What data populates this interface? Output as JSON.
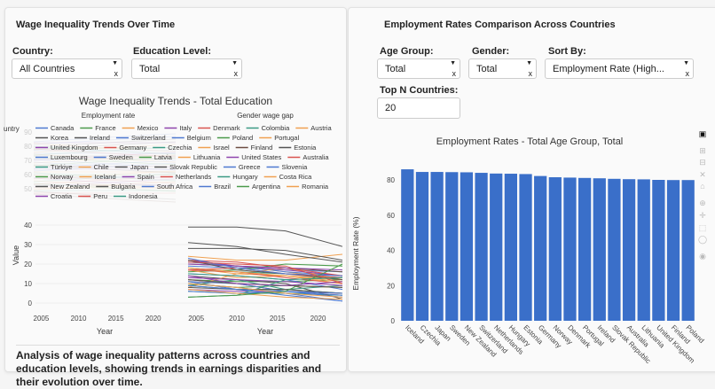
{
  "left": {
    "title": "Wage Inequality Trends Over Time",
    "country_label": "Country:",
    "country_value": "All Countries",
    "education_label": "Education Level:",
    "education_value": "Total",
    "analysis": "Analysis of wage inequality patterns across countries and education levels, showing trends in earnings disparities and their evolution over time."
  },
  "right": {
    "title": "Employment Rates Comparison Across Countries",
    "age_label": "Age Group:",
    "age_value": "Total",
    "gender_label": "Gender:",
    "gender_value": "Total",
    "sort_label": "Sort By:",
    "sort_value": "Employment Rate (High...",
    "topn_label": "Top N Countries:",
    "topn_value": "20"
  },
  "chart_data": [
    {
      "type": "line",
      "title": "Wage Inequality Trends - Total Education",
      "subplot_titles": [
        "Employment rate",
        "Gender wage gap"
      ],
      "ylabel": "Value",
      "xlabel": "Year",
      "legend_title_partial": "untry",
      "x_ticks": [
        "2005",
        "2010",
        "2015",
        "2020"
      ],
      "y_ticks_top": [
        "50",
        "60",
        "70",
        "80",
        "90"
      ],
      "y_ticks": [
        "0",
        "10",
        "20",
        "30",
        "40"
      ],
      "sample_years": [
        2004,
        2010,
        2016,
        2023
      ],
      "series": [
        {
          "name": "Canada",
          "color": "#4e79d0",
          "gap": [
            19,
            18,
            17,
            16
          ]
        },
        {
          "name": "France",
          "color": "#4a9a4a",
          "gap": [
            12,
            11,
            11,
            12
          ]
        },
        {
          "name": "Mexico",
          "color": "#f0a050",
          "gap": [
            18,
            15,
            14,
            12
          ]
        },
        {
          "name": "Italy",
          "color": "#8e44ad",
          "gap": [
            7,
            6,
            6,
            5
          ]
        },
        {
          "name": "Denmark",
          "color": "#d9534f",
          "gap": [
            12,
            10,
            6,
            5
          ]
        },
        {
          "name": "Colombia",
          "color": "#3a9a84",
          "gap": [
            6,
            5,
            5,
            4
          ]
        },
        {
          "name": "Austria",
          "color": "#f0a050",
          "gap": [
            22,
            19,
            16,
            12
          ]
        },
        {
          "name": "Korea",
          "color": "#555555",
          "gap": [
            39,
            39,
            37,
            29
          ]
        },
        {
          "name": "Ireland",
          "color": "#555555",
          "gap": [
            14,
            12,
            10,
            2
          ]
        },
        {
          "name": "Switzerland",
          "color": "#4e79d0",
          "gap": [
            21,
            19,
            16,
            14
          ]
        },
        {
          "name": "Belgium",
          "color": "#4e79d0",
          "gap": [
            10,
            8,
            5,
            1
          ]
        },
        {
          "name": "Poland",
          "color": "#4a9a4a",
          "gap": [
            10,
            8,
            9,
            8
          ]
        },
        {
          "name": "Portugal",
          "color": "#f0a050",
          "gap": [
            8,
            15,
            18,
            12
          ]
        },
        {
          "name": "United Kingdom",
          "color": "#8e44ad",
          "gap": [
            22,
            19,
            17,
            14
          ]
        },
        {
          "name": "Germany",
          "color": "#d9534f",
          "gap": [
            22,
            21,
            18,
            14
          ]
        },
        {
          "name": "Czechia",
          "color": "#3a9a84",
          "gap": [
            18,
            16,
            15,
            13
          ]
        },
        {
          "name": "Israel",
          "color": "#f0a050",
          "gap": [
            24,
            22,
            22,
            25
          ]
        },
        {
          "name": "Finland",
          "color": "#6d4c41",
          "gap": [
            20,
            19,
            18,
            16
          ]
        },
        {
          "name": "Estonia",
          "color": "#555555",
          "gap": [
            28,
            28,
            27,
            22
          ]
        },
        {
          "name": "Luxembourg",
          "color": "#4e79d0",
          "gap": [
            11,
            7,
            4,
            1
          ]
        },
        {
          "name": "Sweden",
          "color": "#4e79d0",
          "gap": [
            15,
            14,
            12,
            7
          ]
        },
        {
          "name": "Latvia",
          "color": "#4a9a4a",
          "gap": [
            16,
            17,
            20,
            19
          ]
        },
        {
          "name": "Lithuania",
          "color": "#f0a050",
          "gap": [
            17,
            13,
            14,
            11
          ]
        },
        {
          "name": "United States",
          "color": "#8e44ad",
          "gap": [
            20,
            19,
            18,
            17
          ]
        },
        {
          "name": "Australia",
          "color": "#d9534f",
          "gap": [
            17,
            16,
            13,
            10
          ]
        },
        {
          "name": "Türkiye",
          "color": "#3a9a84",
          "gap": [
            9,
            12,
            7,
            9
          ]
        },
        {
          "name": "Chile",
          "color": "#f0a050",
          "gap": [
            11,
            10,
            9,
            8
          ]
        },
        {
          "name": "Japan",
          "color": "#555555",
          "gap": [
            31,
            29,
            25,
            21
          ]
        },
        {
          "name": "Slovak Republic",
          "color": "#555555",
          "gap": [
            22,
            17,
            15,
            12
          ]
        },
        {
          "name": "Greece",
          "color": "#4e79d0",
          "gap": [
            11,
            10,
            6,
            4
          ]
        },
        {
          "name": "Slovenia",
          "color": "#4e79d0",
          "gap": [
            6,
            5,
            6,
            3
          ]
        },
        {
          "name": "Norway",
          "color": "#4a9a4a",
          "gap": [
            9,
            7,
            7,
            5
          ]
        },
        {
          "name": "Iceland",
          "color": "#f0a050",
          "gap": [
            18,
            16,
            14,
            10
          ]
        },
        {
          "name": "Spain",
          "color": "#8e44ad",
          "gap": [
            13,
            12,
            11,
            9
          ]
        },
        {
          "name": "Netherlands",
          "color": "#d9534f",
          "gap": [
            17,
            18,
            15,
            13
          ]
        },
        {
          "name": "Hungary",
          "color": "#3a9a84",
          "gap": [
            3,
            4,
            12,
            13
          ]
        },
        {
          "name": "Costa Rica",
          "color": "#f0a050",
          "gap": [
            7,
            5,
            3,
            2
          ]
        },
        {
          "name": "New Zealand",
          "color": "#555555",
          "gap": [
            8,
            7,
            7,
            5
          ]
        },
        {
          "name": "Bulgaria",
          "color": "#555555",
          "gap": [
            12,
            10,
            9,
            8
          ]
        },
        {
          "name": "South Africa",
          "color": "#4e79d0",
          "gap": [
            23,
            18,
            15,
            14
          ]
        },
        {
          "name": "Brazil",
          "color": "#4e79d0",
          "gap": [
            9,
            7,
            6,
            5
          ]
        },
        {
          "name": "Argentina",
          "color": "#4a9a4a",
          "gap": [
            3,
            4,
            6,
            20
          ]
        },
        {
          "name": "Romania",
          "color": "#f0a050",
          "gap": [
            10,
            8,
            5,
            3
          ]
        },
        {
          "name": "Croatia",
          "color": "#8e44ad",
          "gap": [
            14,
            10,
            9,
            11
          ]
        },
        {
          "name": "Peru",
          "color": "#d9534f",
          "gap": [
            21,
            20,
            19,
            10
          ]
        },
        {
          "name": "Indonesia",
          "color": "#3a9a84",
          "gap": [
            15,
            14,
            12,
            13
          ]
        }
      ]
    },
    {
      "type": "bar",
      "title": "Employment Rates - Total Age Group, Total",
      "xlabel": "",
      "ylabel": "Employment Rate (%)",
      "ylim": [
        0,
        90
      ],
      "y_ticks": [
        "0",
        "20",
        "40",
        "60",
        "80"
      ],
      "color": "#3a6fc9",
      "categories": [
        "Iceland",
        "Czechia",
        "Japan",
        "Sweden",
        "New Zealand",
        "Switzerland",
        "Netherlands",
        "Hungary",
        "Estonia",
        "Germany",
        "Norway",
        "Denmark",
        "Portugal",
        "Ireland",
        "Slovak Republic",
        "Australia",
        "Lithuania",
        "United Kingdom",
        "Finland",
        "Poland"
      ],
      "values": [
        86.0,
        84.5,
        84.5,
        84.4,
        84.3,
        84.0,
        83.6,
        83.5,
        83.3,
        82.2,
        81.5,
        81.3,
        81.1,
        80.9,
        80.6,
        80.4,
        80.3,
        80.0,
        79.9,
        79.9
      ]
    }
  ]
}
